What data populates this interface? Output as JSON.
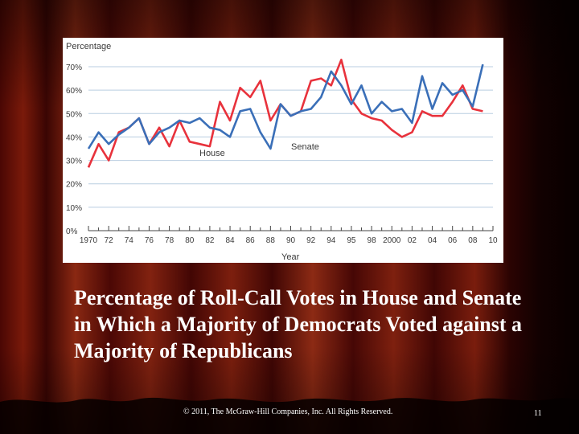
{
  "slide": {
    "title": "Percentage of Roll-Call Votes in House and Senate in Which a Majority of Democrats Voted against a Majority of Republicans",
    "footer_copyright": "© 2011, The McGraw-Hill Companies, Inc. All Rights Reserved.",
    "page_number": "11"
  },
  "colors": {
    "house": "#e8323c",
    "senate": "#3a6fb8",
    "grid": "#b9cde0",
    "axis": "#444444",
    "curtain_dark": "#2a0303",
    "curtain_light": "#8a2410"
  },
  "chart_data": {
    "type": "line",
    "title": "",
    "ylabel": "Percentage",
    "xlabel": "Year",
    "xlim": [
      1970,
      2010
    ],
    "ylim": [
      0,
      70
    ],
    "y_ticks": [
      0,
      10,
      20,
      30,
      40,
      50,
      60,
      70
    ],
    "y_tick_labels": [
      "0%",
      "10%",
      "20%",
      "30%",
      "40%",
      "50%",
      "60%",
      "70%"
    ],
    "x_tick_labels": [
      "1970",
      "72",
      "74",
      "76",
      "78",
      "80",
      "82",
      "84",
      "86",
      "88",
      "90",
      "92",
      "94",
      "95",
      "98",
      "2000",
      "02",
      "04",
      "06",
      "08",
      "10"
    ],
    "grid": true,
    "series": [
      {
        "name": "House",
        "x": [
          1970,
          1971,
          1972,
          1973,
          1974,
          1975,
          1976,
          1977,
          1978,
          1979,
          1980,
          1981,
          1982,
          1983,
          1984,
          1985,
          1986,
          1987,
          1988,
          1989,
          1990,
          1991,
          1992,
          1993,
          1994,
          1995,
          1996,
          1997,
          1998,
          1999,
          2000,
          2001,
          2002,
          2003,
          2004,
          2005,
          2006,
          2007,
          2008,
          2009
        ],
        "values": [
          27,
          37,
          30,
          42,
          44,
          48,
          37,
          44,
          36,
          47,
          38,
          37,
          36,
          55,
          47,
          61,
          57,
          64,
          47,
          54,
          49,
          51,
          64,
          65,
          62,
          73,
          56,
          50,
          48,
          47,
          43,
          40,
          42,
          51,
          49,
          49,
          55,
          62,
          52,
          51
        ]
      },
      {
        "name": "Senate",
        "x": [
          1970,
          1971,
          1972,
          1973,
          1974,
          1975,
          1976,
          1977,
          1978,
          1979,
          1980,
          1981,
          1982,
          1983,
          1984,
          1985,
          1986,
          1987,
          1988,
          1989,
          1990,
          1991,
          1992,
          1993,
          1994,
          1995,
          1996,
          1997,
          1998,
          1999,
          2000,
          2001,
          2002,
          2003,
          2004,
          2005,
          2006,
          2007,
          2008,
          2009
        ],
        "values": [
          35,
          42,
          37,
          41,
          44,
          48,
          37,
          42,
          44,
          47,
          46,
          48,
          44,
          43,
          40,
          51,
          52,
          42,
          35,
          54,
          49,
          51,
          52,
          57,
          68,
          62,
          54,
          62,
          50,
          55,
          51,
          52,
          46,
          66,
          52,
          63,
          58,
          60,
          53,
          71
        ]
      }
    ],
    "annotations": [
      {
        "text": "House",
        "series": "House"
      },
      {
        "text": "Senate",
        "series": "Senate"
      }
    ]
  }
}
